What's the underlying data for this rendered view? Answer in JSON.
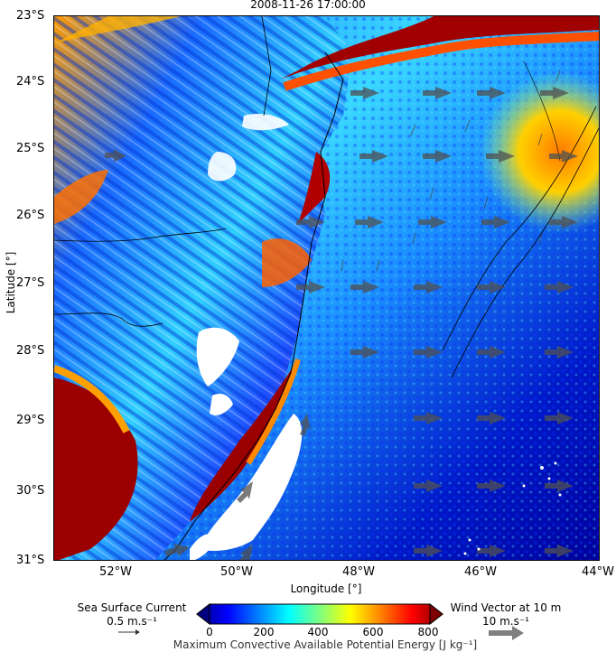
{
  "title": "2008-11-26 17:00:00",
  "map": {
    "lat_ticks": [
      "23°S",
      "24°S",
      "25°S",
      "26°S",
      "27°S",
      "28°S",
      "29°S",
      "30°S",
      "31°S"
    ],
    "lon_ticks": [
      "52°W",
      "50°W",
      "48°W",
      "46°W",
      "44°W"
    ],
    "ylabel": "Latitude [°]",
    "xlabel": "Longitude [°]",
    "lat_range": [
      -31,
      -23
    ],
    "lon_range": [
      -53,
      -44
    ],
    "field": "Maximum Convective Available Potential Energy",
    "colormap": "jet",
    "colors": {
      "land_high": "#8b0000",
      "ocean_low": "#00008b",
      "coastline": "#000000",
      "arrow": "#505050"
    }
  },
  "colorbar": {
    "title": "Maximum Convective Available Potential Energy [J kg⁻¹]",
    "ticks": [
      "0",
      "200",
      "400",
      "600",
      "800"
    ],
    "range": [
      0,
      800
    ],
    "extend": "both"
  },
  "legend": {
    "current_label": "Sea Surface Current",
    "current_ref": "0.5 m.s⁻¹",
    "wind_label": "Wind Vector at 10 m",
    "wind_ref": "10 m.s⁻¹"
  }
}
